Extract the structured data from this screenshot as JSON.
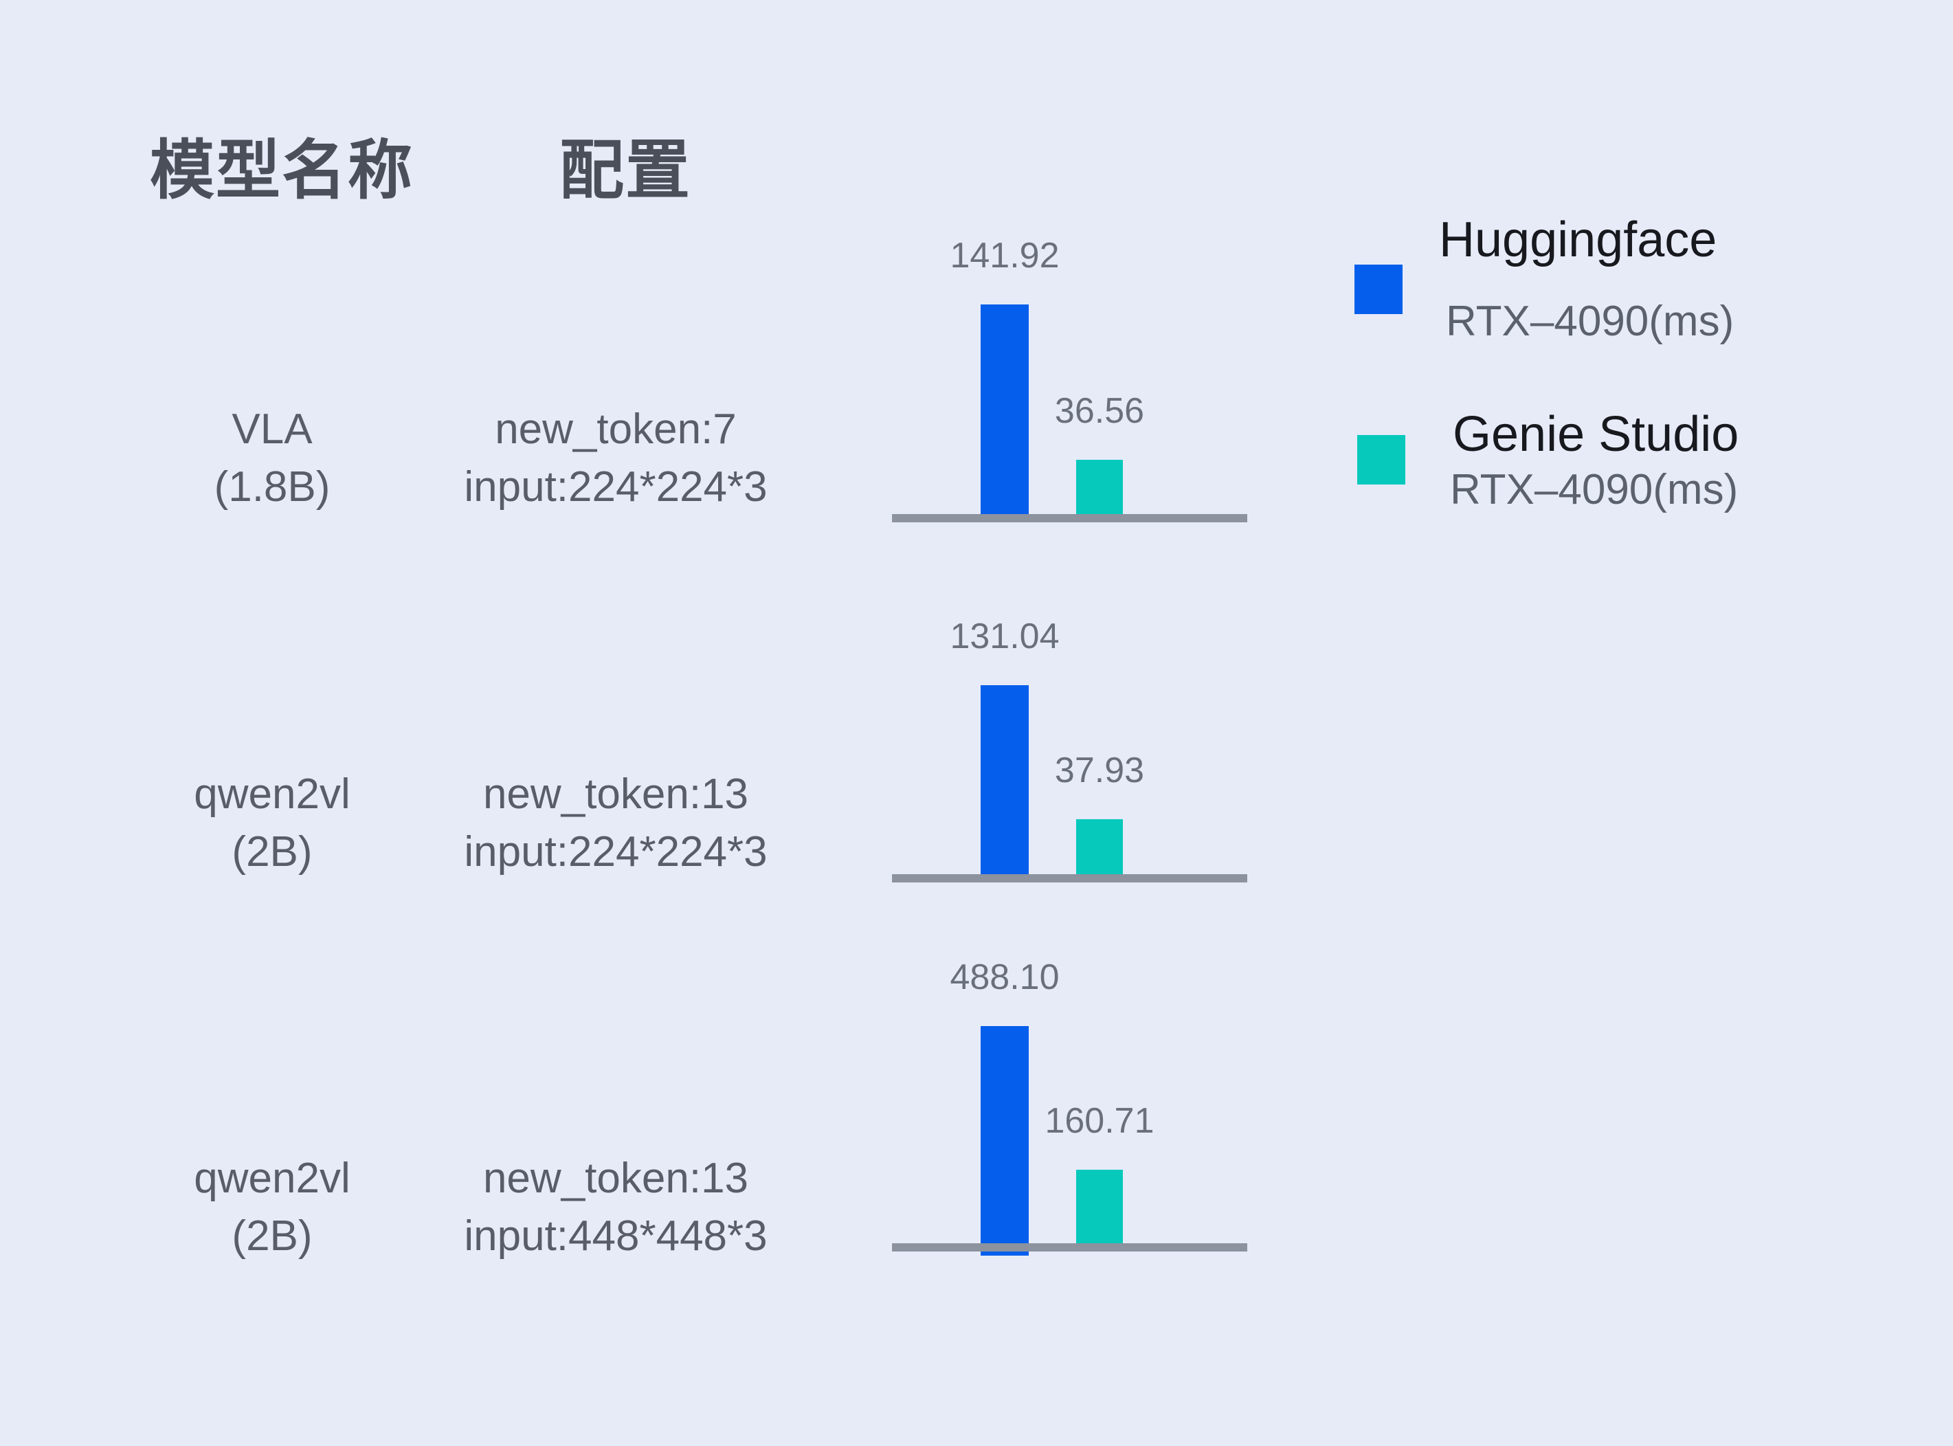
{
  "headers": {
    "model": "模型名称",
    "config": "配置"
  },
  "legend": {
    "items": [
      {
        "label": "Huggingface",
        "sublabel": "RTX–4090(ms)",
        "color": "#055eec"
      },
      {
        "label": "Genie Studio",
        "sublabel": "RTX–4090(ms)",
        "color": "#06c9bc"
      }
    ]
  },
  "rows": [
    {
      "model_line1": "VLA",
      "model_line2": "(1.8B)",
      "config_line1": "new_token:7",
      "config_line2": "input:224*224*3",
      "hf_value_label": "141.92",
      "genie_value_label": "36.56"
    },
    {
      "model_line1": "qwen2vl",
      "model_line2": "(2B)",
      "config_line1": "new_token:13",
      "config_line2": "input:224*224*3",
      "hf_value_label": "131.04",
      "genie_value_label": "37.93"
    },
    {
      "model_line1": "qwen2vl",
      "model_line2": "(2B)",
      "config_line1": "new_token:13",
      "config_line2": "input:448*448*3",
      "hf_value_label": "488.10",
      "genie_value_label": "160.71"
    }
  ],
  "chart_data": {
    "type": "bar",
    "title": "",
    "unit": "ms",
    "categories": [
      "VLA (1.8B) new_token:7 input:224*224*3",
      "qwen2vl (2B) new_token:13 input:224*224*3",
      "qwen2vl (2B) new_token:13 input:448*448*3"
    ],
    "series": [
      {
        "name": "Huggingface RTX–4090(ms)",
        "color": "#055eec",
        "values": [
          141.92,
          131.04,
          488.1
        ]
      },
      {
        "name": "Genie Studio RTX–4090(ms)",
        "color": "#06c9bc",
        "values": [
          36.56,
          37.93,
          160.71
        ]
      }
    ],
    "layout": {
      "style": "three separate mini bar charts, one per row, independent scales",
      "value_labels": true,
      "legend_position": "top-right",
      "axis": "baseline only, no ticks, no gridlines"
    }
  },
  "colors": {
    "background": "#e7ebf8",
    "huggingface_bar": "#055eec",
    "genie_bar": "#06c9bc",
    "axis": "#8c929e",
    "value_label": "#6a707a",
    "row_text": "#585d68",
    "header_text": "#4a4f5a",
    "legend_title": "#17191e",
    "legend_subtitle": "#5c626c"
  }
}
